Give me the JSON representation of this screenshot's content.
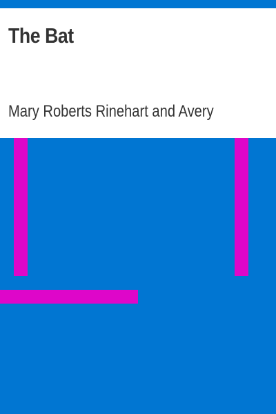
{
  "book": {
    "title": "The Bat",
    "author": "Mary Roberts Rinehart and Avery"
  },
  "colors": {
    "background": "#0176d2",
    "panel": "#ffffff",
    "accent": "#de06c9",
    "text": "#333333"
  }
}
